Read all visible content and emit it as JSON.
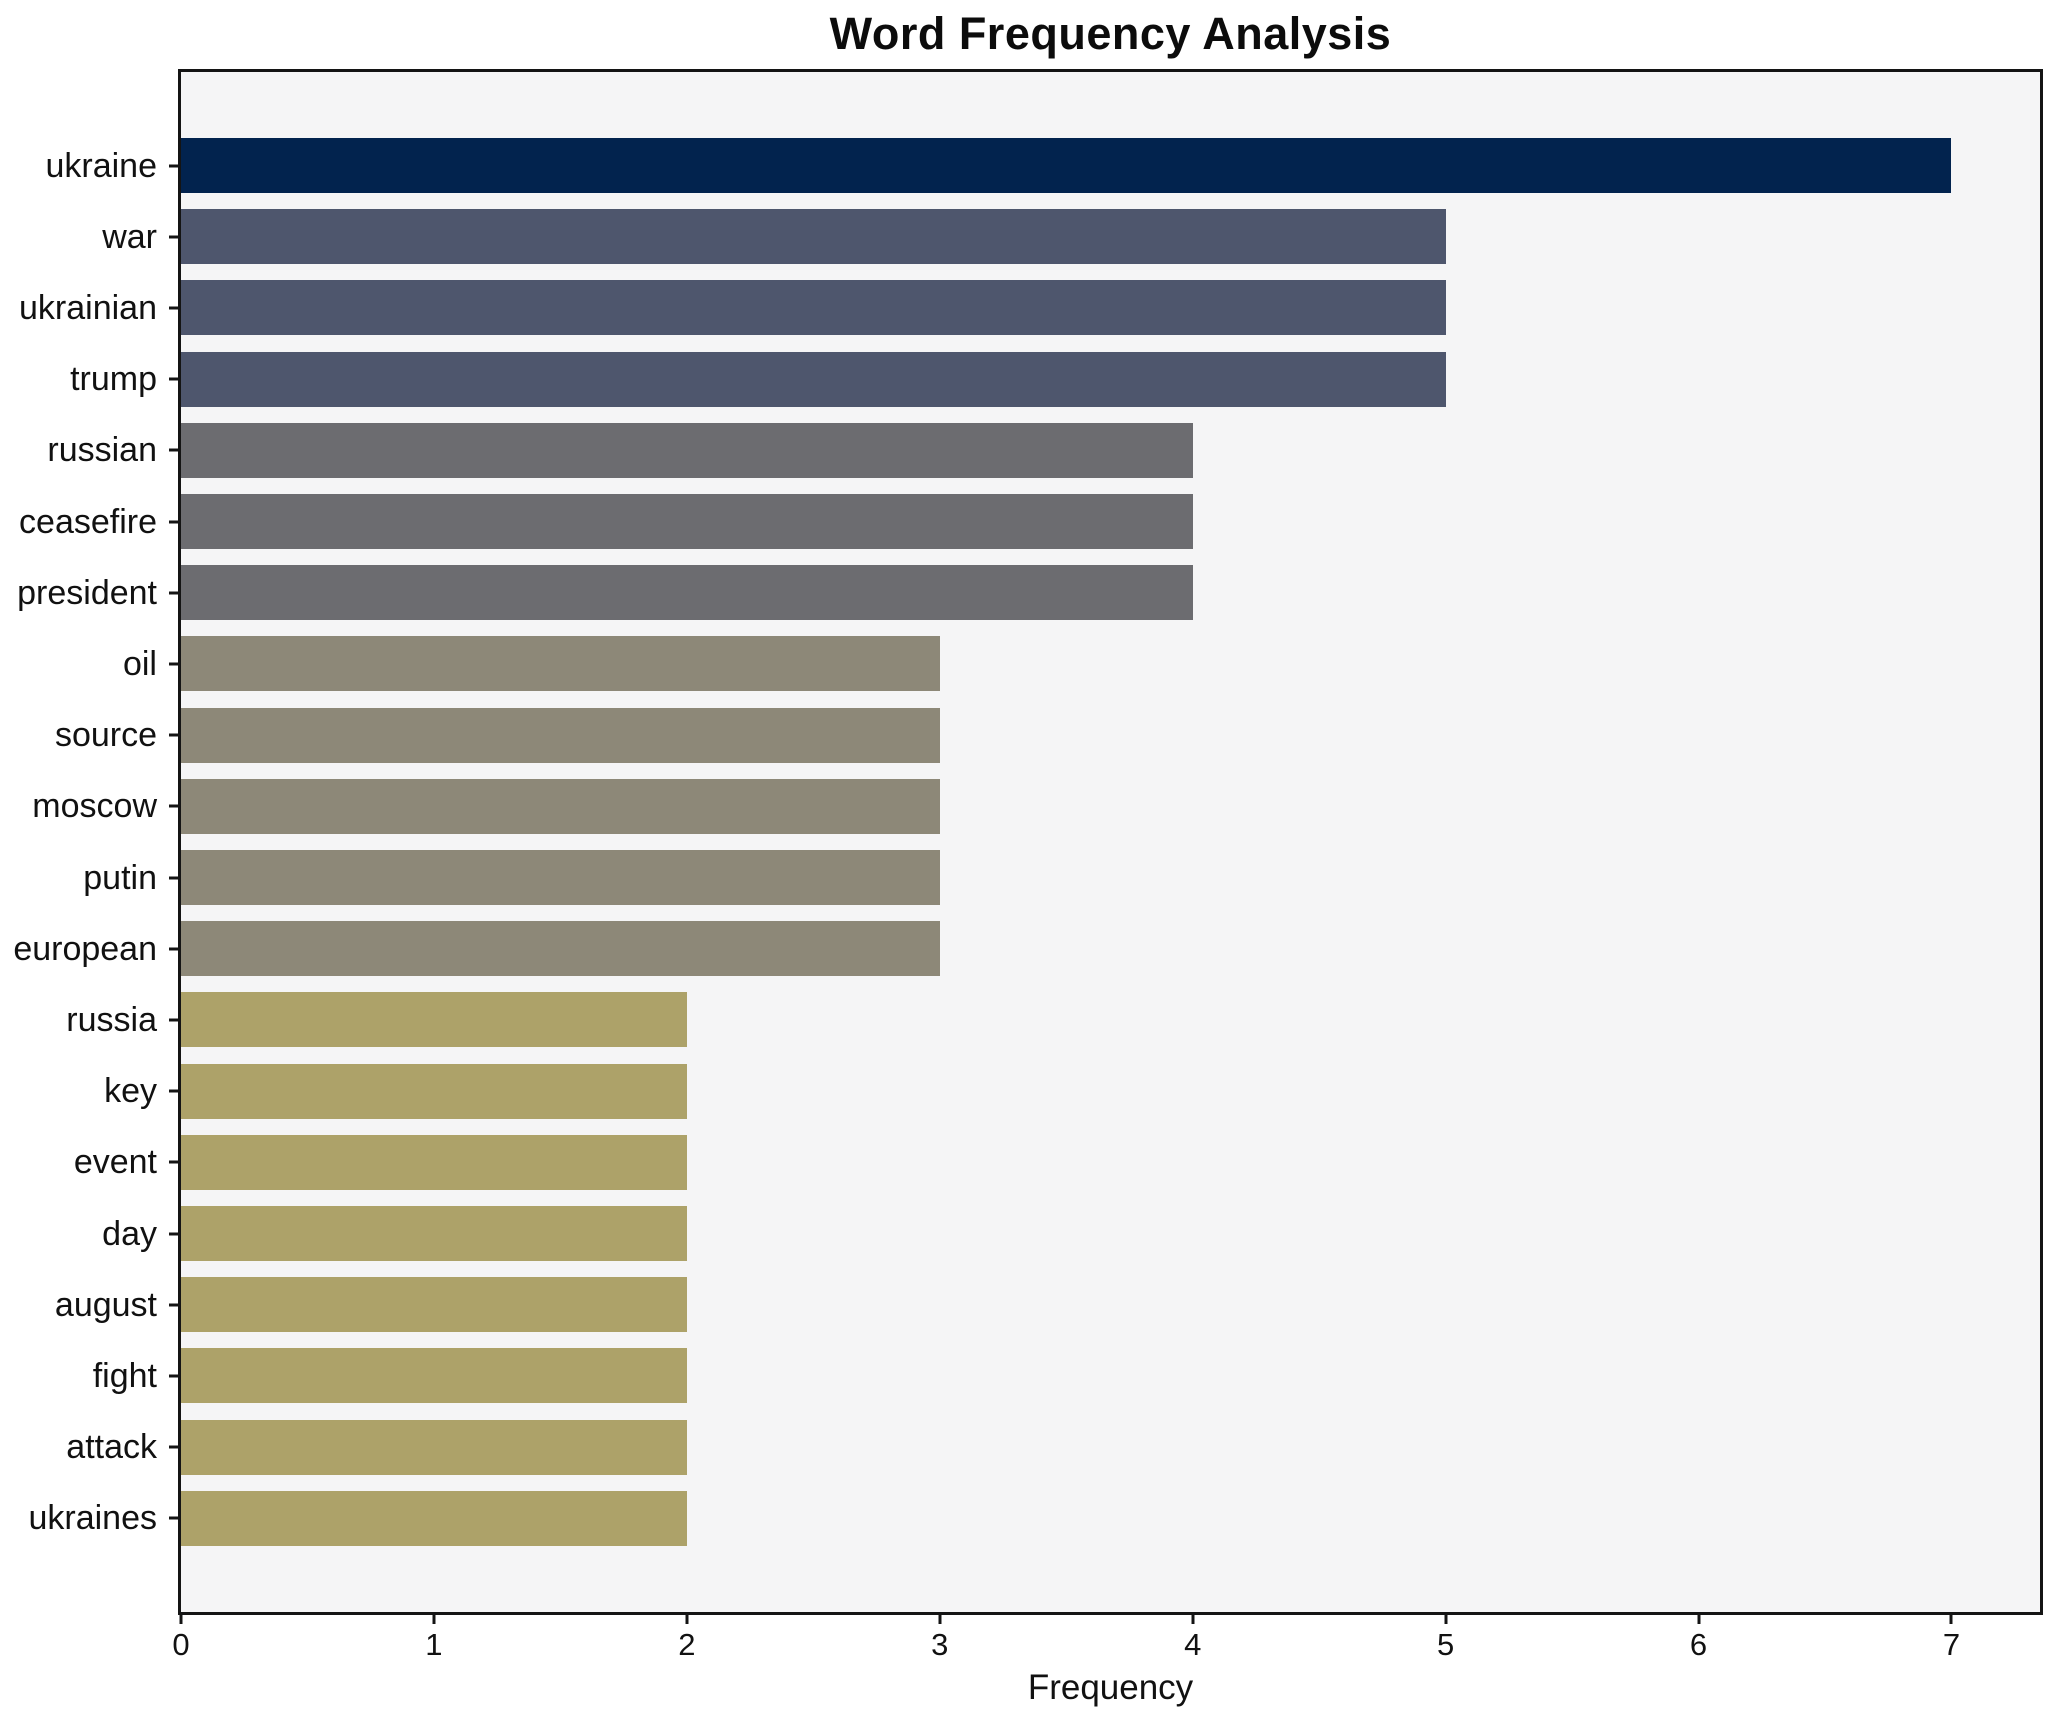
{
  "chart_data": {
    "type": "bar",
    "orientation": "horizontal",
    "title": "Word Frequency Analysis",
    "xlabel": "Frequency",
    "ylabel": "",
    "categories": [
      "ukraine",
      "war",
      "ukrainian",
      "trump",
      "russian",
      "ceasefire",
      "president",
      "oil",
      "source",
      "moscow",
      "putin",
      "european",
      "russia",
      "key",
      "event",
      "day",
      "august",
      "fight",
      "attack",
      "ukraines"
    ],
    "values": [
      7,
      5,
      5,
      5,
      4,
      4,
      4,
      3,
      3,
      3,
      3,
      3,
      2,
      2,
      2,
      2,
      2,
      2,
      2,
      2
    ],
    "bar_colors": [
      "#02234e",
      "#4e566d",
      "#4e566d",
      "#4e566d",
      "#6c6c70",
      "#6c6c70",
      "#6c6c70",
      "#8d8878",
      "#8d8878",
      "#8d8878",
      "#8d8878",
      "#8d8878",
      "#ada269",
      "#ada269",
      "#ada269",
      "#ada269",
      "#ada269",
      "#ada269",
      "#ada269",
      "#ada269"
    ],
    "x_ticks": [
      0,
      1,
      2,
      3,
      4,
      5,
      6,
      7
    ],
    "xlim": [
      0,
      7.35
    ],
    "grid": false,
    "legend": false,
    "plot_bg": "#f5f5f6",
    "figure_bg": "#ffffff",
    "spine_color": "#141414",
    "text_color": "#111111"
  }
}
